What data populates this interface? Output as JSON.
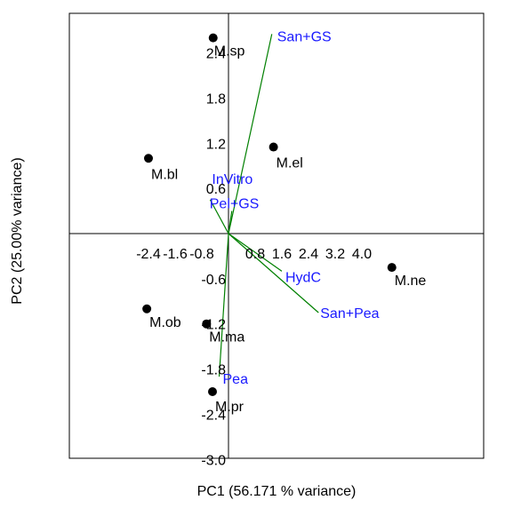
{
  "chart_data": {
    "type": "scatter",
    "subtype": "pca-biplot",
    "xlabel": "PC1 (56.171 % variance)",
    "ylabel": "PC2 (25.00% variance)",
    "xlim": [
      -3.2,
      4.8
    ],
    "ylim": [
      -3.0,
      3.0
    ],
    "x_ticks": [
      -2.4,
      -1.6,
      -0.8,
      0.8,
      1.6,
      2.4,
      3.2,
      4.0
    ],
    "x_tick_labels": [
      "-2.4",
      "-1.6",
      "-0.8",
      "0.8",
      "1.6",
      "2.4",
      "3.2",
      "4.0"
    ],
    "y_ticks": [
      2.4,
      1.8,
      1.2,
      0.6,
      -0.6,
      -1.2,
      -1.8,
      -2.4,
      -3.0
    ],
    "y_tick_labels": [
      "2.4",
      "1.8",
      "1.2",
      "0.6",
      "-0.6",
      "-1.2",
      "-1.8",
      "-2.4",
      "-3.0"
    ],
    "grid": false,
    "point_color": "#000000",
    "loading_color": "#008000",
    "loading_label_color": "#1a1aff",
    "points": [
      {
        "label": "M.sp",
        "x": -0.46,
        "y": 2.6
      },
      {
        "label": "M.el",
        "x": 1.35,
        "y": 1.15
      },
      {
        "label": "M.bl",
        "x": -2.4,
        "y": 1.0
      },
      {
        "label": "M.ne",
        "x": 4.9,
        "y": -0.45
      },
      {
        "label": "M.ob",
        "x": -2.45,
        "y": -1.0
      },
      {
        "label": "M.ma",
        "x": -0.66,
        "y": -1.2
      },
      {
        "label": "M.pr",
        "x": -0.48,
        "y": -2.1
      }
    ],
    "loadings": [
      {
        "label": "San+GS",
        "x": 1.3,
        "y": 2.65
      },
      {
        "label": "InVitro",
        "x": -0.55,
        "y": 0.45
      },
      {
        "label": "Pel+GS",
        "x": 0.1,
        "y": 0.3
      },
      {
        "label": "HydC",
        "x": 1.6,
        "y": -0.5
      },
      {
        "label": "San+Pea",
        "x": 2.7,
        "y": -1.05
      },
      {
        "label": "Pea",
        "x": -0.28,
        "y": -1.9
      }
    ]
  }
}
